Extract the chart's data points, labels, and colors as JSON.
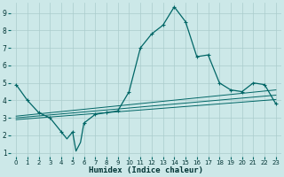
{
  "xlabel": "Humidex (Indice chaleur)",
  "bg_color": "#cce8e8",
  "grid_color": "#aacccc",
  "line_color": "#006666",
  "xlim": [
    -0.5,
    23.5
  ],
  "ylim": [
    0.8,
    9.6
  ],
  "yticks": [
    1,
    2,
    3,
    4,
    5,
    6,
    7,
    8,
    9
  ],
  "xticks": [
    0,
    1,
    2,
    3,
    4,
    5,
    6,
    7,
    8,
    9,
    10,
    11,
    12,
    13,
    14,
    15,
    16,
    17,
    18,
    19,
    20,
    21,
    22,
    23
  ],
  "main_x": [
    0,
    1,
    2,
    3,
    4,
    4.5,
    5,
    5.3,
    5.7,
    6,
    7,
    8,
    9,
    10,
    11,
    12,
    13,
    14,
    15,
    16,
    17,
    18,
    19,
    20,
    21,
    22,
    23
  ],
  "main_y": [
    4.9,
    4.0,
    3.3,
    3.0,
    2.2,
    1.8,
    2.2,
    1.1,
    1.6,
    2.7,
    3.2,
    3.3,
    3.4,
    4.5,
    7.0,
    7.8,
    8.3,
    9.35,
    8.5,
    6.5,
    6.6,
    5.0,
    4.6,
    4.5,
    5.0,
    4.9,
    3.8
  ],
  "trend1_x": [
    0,
    23
  ],
  "trend1_y": [
    3.1,
    4.6
  ],
  "trend2_x": [
    0,
    23
  ],
  "trend2_y": [
    3.0,
    4.3
  ],
  "trend3_x": [
    0,
    23
  ],
  "trend3_y": [
    2.9,
    4.05
  ],
  "marker_x": [
    0,
    1,
    2,
    3,
    4,
    5,
    6,
    7,
    8,
    9,
    10,
    11,
    12,
    13,
    14,
    15,
    16,
    17,
    18,
    19,
    20,
    21,
    22,
    23
  ],
  "marker_y": [
    4.9,
    4.0,
    3.3,
    3.0,
    2.2,
    2.2,
    2.7,
    3.2,
    3.3,
    3.4,
    4.5,
    7.0,
    7.8,
    8.3,
    9.35,
    8.5,
    6.5,
    6.6,
    5.0,
    4.6,
    4.5,
    5.0,
    4.9,
    3.8
  ]
}
